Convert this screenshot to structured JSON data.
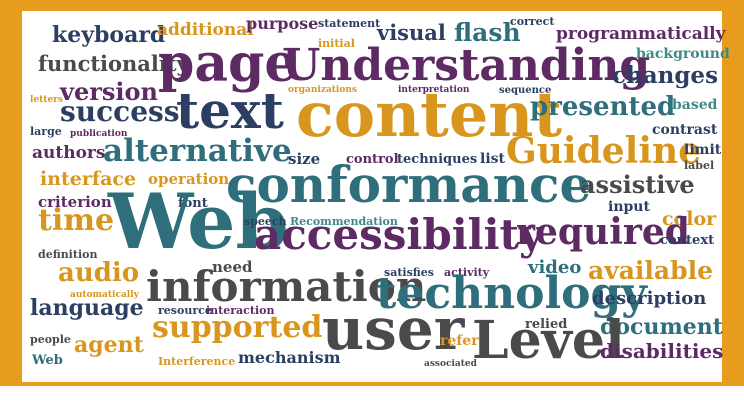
{
  "words": [
    {
      "key": "keyboard",
      "text": "keyboard"
    },
    {
      "key": "additional",
      "text": "additional"
    },
    {
      "key": "purpose",
      "text": "purpose"
    },
    {
      "key": "statement",
      "text": "statement"
    },
    {
      "key": "visual",
      "text": "visual"
    },
    {
      "key": "flash",
      "text": "flash"
    },
    {
      "key": "correct",
      "text": "correct"
    },
    {
      "key": "programmatically",
      "text": "programmatically"
    },
    {
      "key": "functionality",
      "text": "functionality"
    },
    {
      "key": "page",
      "text": "page"
    },
    {
      "key": "initial",
      "text": "initial"
    },
    {
      "key": "understanding",
      "text": "Understanding"
    },
    {
      "key": "background",
      "text": "background"
    },
    {
      "key": "version",
      "text": "version"
    },
    {
      "key": "changes",
      "text": "changes"
    },
    {
      "key": "letters",
      "text": "letters"
    },
    {
      "key": "organizations",
      "text": "organizations"
    },
    {
      "key": "interpretation",
      "text": "interpretation"
    },
    {
      "key": "sequence",
      "text": "sequence"
    },
    {
      "key": "success",
      "text": "success"
    },
    {
      "key": "text",
      "text": "text"
    },
    {
      "key": "content",
      "text": "content"
    },
    {
      "key": "presented",
      "text": "presented"
    },
    {
      "key": "based",
      "text": "based"
    },
    {
      "key": "large",
      "text": "large"
    },
    {
      "key": "publication",
      "text": "publication"
    },
    {
      "key": "contrast",
      "text": "contrast"
    },
    {
      "key": "authors",
      "text": "authors"
    },
    {
      "key": "alternative",
      "text": "alternative"
    },
    {
      "key": "guideline",
      "text": "Guideline"
    },
    {
      "key": "limit",
      "text": "limit"
    },
    {
      "key": "size",
      "text": "size"
    },
    {
      "key": "control",
      "text": "control"
    },
    {
      "key": "techniques",
      "text": "techniques"
    },
    {
      "key": "list",
      "text": "list"
    },
    {
      "key": "label",
      "text": "label"
    },
    {
      "key": "interface",
      "text": "interface"
    },
    {
      "key": "operation",
      "text": "operation"
    },
    {
      "key": "conformance",
      "text": "conformance"
    },
    {
      "key": "assistive",
      "text": "assistive"
    },
    {
      "key": "criterion",
      "text": "criterion"
    },
    {
      "key": "font",
      "text": "font"
    },
    {
      "key": "input",
      "text": "input"
    },
    {
      "key": "time",
      "text": "time"
    },
    {
      "key": "web",
      "text": "Web"
    },
    {
      "key": "speech",
      "text": "speech"
    },
    {
      "key": "recommendation",
      "text": "Recommendation"
    },
    {
      "key": "color",
      "text": "color"
    },
    {
      "key": "accessibility",
      "text": "accessibility"
    },
    {
      "key": "required",
      "text": "required"
    },
    {
      "key": "context",
      "text": "context"
    },
    {
      "key": "definition",
      "text": "definition"
    },
    {
      "key": "need",
      "text": "need"
    },
    {
      "key": "video",
      "text": "video"
    },
    {
      "key": "audio",
      "text": "audio"
    },
    {
      "key": "satisfies",
      "text": "satisfies"
    },
    {
      "key": "activity",
      "text": "activity"
    },
    {
      "key": "available",
      "text": "available"
    },
    {
      "key": "information",
      "text": "information"
    },
    {
      "key": "technology",
      "text": "technology"
    },
    {
      "key": "language",
      "text": "language"
    },
    {
      "key": "automatically",
      "text": "automatically"
    },
    {
      "key": "description",
      "text": "description"
    },
    {
      "key": "resource",
      "text": "resource"
    },
    {
      "key": "interaction",
      "text": "interaction"
    },
    {
      "key": "supported",
      "text": "supported"
    },
    {
      "key": "user",
      "text": "user"
    },
    {
      "key": "relied",
      "text": "relied"
    },
    {
      "key": "document",
      "text": "document"
    },
    {
      "key": "people",
      "text": "people"
    },
    {
      "key": "agent",
      "text": "agent"
    },
    {
      "key": "refer",
      "text": "refer"
    },
    {
      "key": "level",
      "text": "Level"
    },
    {
      "key": "web_small",
      "text": "Web"
    },
    {
      "key": "interference",
      "text": "Interference"
    },
    {
      "key": "mechanism",
      "text": "mechanism"
    },
    {
      "key": "associated",
      "text": "associated"
    },
    {
      "key": "disabilities",
      "text": "disabilities"
    }
  ]
}
